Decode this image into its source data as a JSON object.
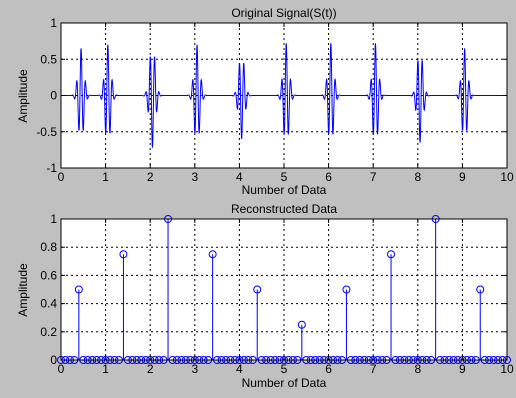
{
  "chart_data": [
    {
      "type": "line",
      "title": "Original Signal(S(t))",
      "xlabel": "Number of Data",
      "ylabel": "Amplitude",
      "xlim": [
        0,
        10
      ],
      "ylim": [
        -1,
        1
      ],
      "xticks": [
        "0",
        "1",
        "2",
        "3",
        "4",
        "5",
        "6",
        "7",
        "8",
        "9",
        "10"
      ],
      "yticks": [
        "-1",
        "-0.5",
        "0",
        "0.5",
        "1"
      ],
      "grid": true,
      "bursts": [
        {
          "center": 0.45,
          "amplitude": 0.65
        },
        {
          "center": 1.05,
          "amplitude": 0.7
        },
        {
          "center": 2.05,
          "amplitude": -0.72
        },
        {
          "center": 3.05,
          "amplitude": 0.7
        },
        {
          "center": 4.05,
          "amplitude": -0.6
        },
        {
          "center": 5.05,
          "amplitude": 0.72
        },
        {
          "center": 6.05,
          "amplitude": 0.72
        },
        {
          "center": 7.05,
          "amplitude": 0.72
        },
        {
          "center": 8.05,
          "amplitude": -0.65
        },
        {
          "center": 9.05,
          "amplitude": 0.65
        }
      ],
      "colors": {
        "line": "#0000ff",
        "axes_bg": "#ffffff",
        "figure_bg": "#c0c0c0"
      }
    },
    {
      "type": "stem",
      "title": "Reconstructed Data",
      "xlabel": "Number of Data",
      "ylabel": "Amplitude",
      "xlim": [
        0,
        10
      ],
      "ylim": [
        0,
        1
      ],
      "xticks": [
        "0",
        "1",
        "2",
        "3",
        "4",
        "5",
        "6",
        "7",
        "8",
        "9",
        "10"
      ],
      "yticks": [
        "0",
        "0.2",
        "0.4",
        "0.6",
        "0.8",
        "1"
      ],
      "grid": true,
      "step": 0.1,
      "nonzero": [
        {
          "x": 0.4,
          "y": 0.5
        },
        {
          "x": 1.4,
          "y": 0.75
        },
        {
          "x": 2.4,
          "y": 1.0
        },
        {
          "x": 3.4,
          "y": 0.75
        },
        {
          "x": 4.4,
          "y": 0.5
        },
        {
          "x": 5.4,
          "y": 0.25
        },
        {
          "x": 6.4,
          "y": 0.5
        },
        {
          "x": 7.4,
          "y": 0.75
        },
        {
          "x": 8.4,
          "y": 1.0
        },
        {
          "x": 9.4,
          "y": 0.5
        }
      ],
      "colors": {
        "stem": "#0000ff",
        "axes_bg": "#ffffff"
      }
    }
  ]
}
